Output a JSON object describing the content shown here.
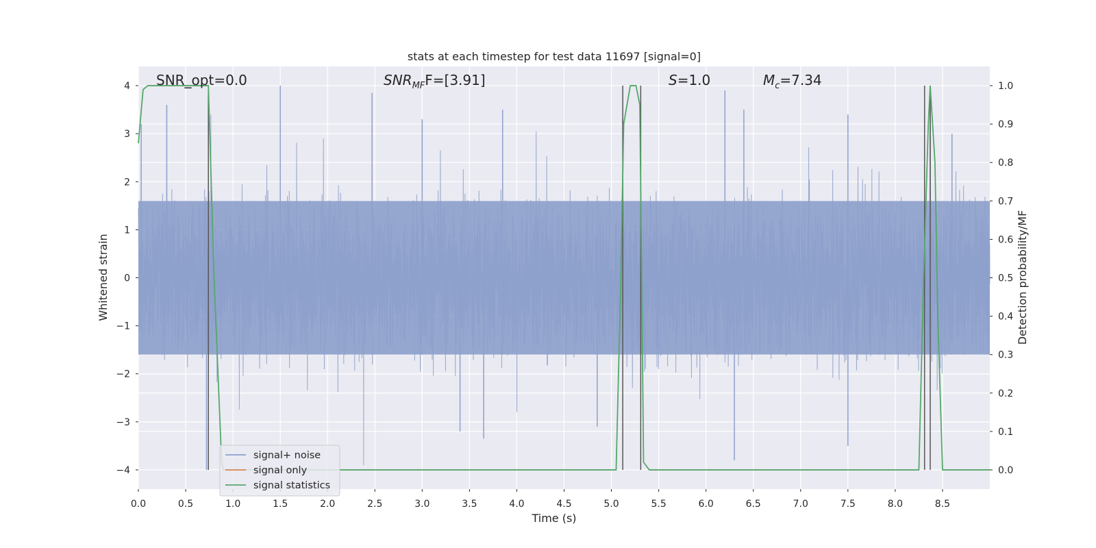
{
  "chart_data": {
    "type": "line",
    "title": "stats at each timestep for test data 11697 [signal=0]",
    "xlabel": "Time (s)",
    "ylabel": "Whitened strain",
    "y2label": "Detection probability/MF",
    "xlim": [
      0.0,
      9.0
    ],
    "ylim": [
      -4.4,
      4.4
    ],
    "y2lim": [
      -0.05,
      1.05
    ],
    "xticks": [
      0.0,
      0.5,
      1.0,
      1.5,
      2.0,
      2.5,
      3.0,
      3.5,
      4.0,
      4.5,
      5.0,
      5.5,
      6.0,
      6.5,
      7.0,
      7.5,
      8.0,
      8.5
    ],
    "xtick_labels": [
      "0.0",
      "0.5",
      "1.0",
      "1.5",
      "2.0",
      "2.5",
      "3.0",
      "3.5",
      "4.0",
      "4.5",
      "5.0",
      "5.5",
      "6.0",
      "6.5",
      "7.0",
      "7.5",
      "8.0",
      "8.5"
    ],
    "yticks": [
      -4,
      -3,
      -2,
      -1,
      0,
      1,
      2,
      3,
      4
    ],
    "ytick_labels": [
      "−4",
      "−3",
      "−2",
      "−1",
      "0",
      "1",
      "2",
      "3",
      "4"
    ],
    "y2ticks": [
      0.0,
      0.1,
      0.2,
      0.3,
      0.4,
      0.5,
      0.6,
      0.7,
      0.8,
      0.9,
      1.0
    ],
    "y2tick_labels": [
      "0.0",
      "0.1",
      "0.2",
      "0.3",
      "0.4",
      "0.5",
      "0.6",
      "0.7",
      "0.8",
      "0.9",
      "1.0"
    ],
    "grid": true,
    "legend_placement": "lower-left",
    "annotations": {
      "snr_opt": "SNR_opt=0.0",
      "snr_mf_main": "SNR",
      "snr_mf_sub": "MF",
      "snr_mf_rest": "F=[3.91]",
      "s_main": "S",
      "s_rest": "=1.0",
      "mc_main": "M",
      "mc_sub": "c",
      "mc_rest": "=7.34"
    },
    "series": [
      {
        "name": "signal+ noise",
        "color": "#8da0cb",
        "kind": "noise-band",
        "core_envelope": 1.6,
        "spike_peaks": [
          {
            "x": 0.03,
            "y": 3.2
          },
          {
            "x": 0.3,
            "y": 3.6
          },
          {
            "x": 0.72,
            "y": -4.0
          },
          {
            "x": 1.5,
            "y": 4.0
          },
          {
            "x": 2.47,
            "y": 3.85
          },
          {
            "x": 3.0,
            "y": 3.3
          },
          {
            "x": 3.4,
            "y": -3.2
          },
          {
            "x": 3.65,
            "y": -3.35
          },
          {
            "x": 3.85,
            "y": 3.5
          },
          {
            "x": 4.85,
            "y": -3.1
          },
          {
            "x": 5.12,
            "y": 3.3
          },
          {
            "x": 6.2,
            "y": 3.9
          },
          {
            "x": 6.3,
            "y": -3.8
          },
          {
            "x": 6.4,
            "y": 3.5
          },
          {
            "x": 7.5,
            "y": 3.4
          },
          {
            "x": 7.5,
            "y": -3.5
          },
          {
            "x": 8.37,
            "y": 4.0
          },
          {
            "x": 8.6,
            "y": 3.0
          }
        ]
      },
      {
        "name": "signal only",
        "color": "#dd8452",
        "x": [],
        "y": []
      },
      {
        "name": "signal statistics",
        "color": "#55a868",
        "axis": "right",
        "x": [
          0.0,
          0.05,
          0.1,
          0.2,
          0.5,
          0.7,
          0.74,
          0.8,
          0.88,
          0.9,
          5.05,
          5.1,
          5.13,
          5.2,
          5.26,
          5.3,
          5.32,
          5.34,
          5.4,
          8.25,
          8.3,
          8.35,
          8.37,
          8.42,
          8.45,
          8.5,
          9.0
        ],
        "y": [
          0.85,
          0.99,
          1.0,
          1.0,
          1.0,
          1.0,
          1.0,
          0.5,
          0.02,
          0.0,
          0.0,
          0.5,
          0.9,
          1.0,
          1.0,
          0.95,
          0.5,
          0.02,
          0.0,
          0.0,
          0.5,
          0.9,
          1.0,
          0.8,
          0.4,
          0.0,
          0.0
        ]
      }
    ],
    "vlines": [
      0.74,
      5.12,
      5.31,
      8.31,
      8.37
    ],
    "vline_color": "#555555"
  }
}
